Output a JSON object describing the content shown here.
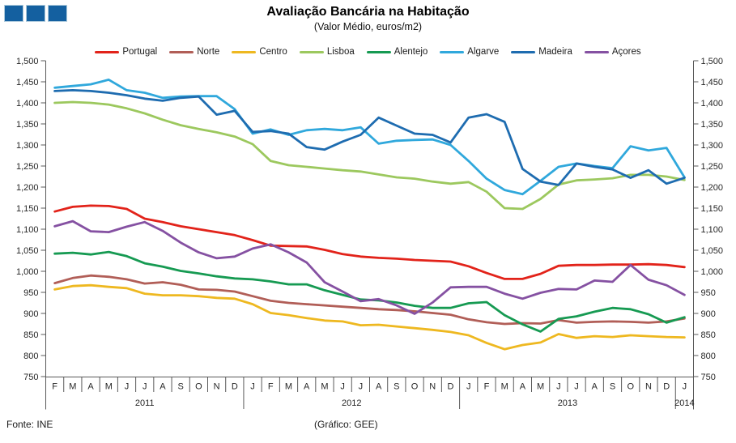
{
  "title": "Avaliação Bancária na Habitação",
  "subtitle": "(Valor Médio, euros/m2)",
  "footer": {
    "source": "Fonte: INE",
    "credit": "(Gráfico: GEE)"
  },
  "logo": {
    "square_color": "#1460A0",
    "square_count": 3
  },
  "chart_data": {
    "type": "line",
    "title": "Avaliação Bancária na Habitação",
    "subtitle": "(Valor Médio, euros/m2)",
    "grid": false,
    "legend_position": "top",
    "y_axis_sides": "both",
    "ylim": [
      750,
      1500
    ],
    "ytick_step": 50,
    "ytick_labels": [
      "1,500",
      "1,450",
      "1,400",
      "1,350",
      "1,300",
      "1,250",
      "1,200",
      "1,150",
      "1,100",
      "1,050",
      "1,000",
      "950",
      "900",
      "850",
      "800",
      "750"
    ],
    "x_months": [
      "F",
      "M",
      "A",
      "M",
      "J",
      "J",
      "A",
      "S",
      "O",
      "N",
      "D",
      "J",
      "F",
      "M",
      "A",
      "M",
      "J",
      "J",
      "A",
      "S",
      "O",
      "N",
      "D",
      "J",
      "F",
      "M",
      "A",
      "M",
      "J",
      "J",
      "A",
      "S",
      "O",
      "N",
      "D",
      "J"
    ],
    "x_years": [
      {
        "label": "2011",
        "span": 11
      },
      {
        "label": "2012",
        "span": 12
      },
      {
        "label": "2013",
        "span": 12
      },
      {
        "label": "2014",
        "span": 1
      }
    ],
    "series": [
      {
        "name": "Portugal",
        "color": "#E2231A",
        "values": [
          1142,
          1153,
          1156,
          1155,
          1148,
          1125,
          1117,
          1107,
          1100,
          1093,
          1086,
          1074,
          1061,
          1060,
          1059,
          1051,
          1041,
          1035,
          1032,
          1030,
          1027,
          1025,
          1023,
          1012,
          996,
          982,
          982,
          994,
          1013,
          1015,
          1015,
          1016,
          1016,
          1017,
          1015,
          1010
        ]
      },
      {
        "name": "Norte",
        "color": "#B15E57",
        "values": [
          972,
          984,
          990,
          987,
          981,
          971,
          974,
          968,
          957,
          956,
          952,
          941,
          930,
          925,
          922,
          919,
          916,
          913,
          910,
          908,
          905,
          901,
          897,
          886,
          879,
          875,
          877,
          876,
          884,
          878,
          880,
          881,
          880,
          878,
          881,
          888
        ]
      },
      {
        "name": "Centro",
        "color": "#EEB820",
        "values": [
          957,
          965,
          967,
          963,
          960,
          947,
          943,
          943,
          941,
          937,
          935,
          922,
          901,
          896,
          889,
          883,
          881,
          872,
          873,
          869,
          865,
          861,
          856,
          848,
          830,
          815,
          825,
          831,
          851,
          842,
          846,
          844,
          848,
          846,
          844,
          843
        ]
      },
      {
        "name": "Lisboa",
        "color": "#9CC85E",
        "values": [
          1400,
          1402,
          1400,
          1396,
          1387,
          1375,
          1360,
          1347,
          1338,
          1330,
          1320,
          1302,
          1262,
          1252,
          1248,
          1244,
          1240,
          1237,
          1230,
          1223,
          1220,
          1213,
          1208,
          1212,
          1189,
          1150,
          1148,
          1172,
          1206,
          1216,
          1218,
          1221,
          1229,
          1229,
          1225,
          1217
        ]
      },
      {
        "name": "Alentejo",
        "color": "#169A52",
        "values": [
          1042,
          1044,
          1040,
          1046,
          1036,
          1019,
          1011,
          1001,
          995,
          988,
          983,
          981,
          976,
          969,
          969,
          955,
          944,
          933,
          931,
          926,
          918,
          913,
          913,
          924,
          927,
          896,
          874,
          857,
          887,
          893,
          904,
          913,
          910,
          898,
          878,
          891
        ]
      },
      {
        "name": "Algarve",
        "color": "#30A8DC",
        "values": [
          1436,
          1440,
          1444,
          1455,
          1430,
          1424,
          1412,
          1415,
          1416,
          1416,
          1385,
          1327,
          1337,
          1324,
          1335,
          1338,
          1335,
          1342,
          1303,
          1310,
          1312,
          1313,
          1300,
          1262,
          1220,
          1193,
          1183,
          1215,
          1248,
          1256,
          1250,
          1245,
          1297,
          1287,
          1293,
          1223
        ]
      },
      {
        "name": "Madeira",
        "color": "#1E6CB0",
        "values": [
          1428,
          1430,
          1428,
          1424,
          1418,
          1410,
          1405,
          1412,
          1415,
          1372,
          1381,
          1331,
          1333,
          1327,
          1295,
          1289,
          1308,
          1324,
          1365,
          1346,
          1327,
          1324,
          1306,
          1365,
          1373,
          1355,
          1243,
          1213,
          1205,
          1256,
          1248,
          1242,
          1222,
          1240,
          1208,
          1222
        ]
      },
      {
        "name": "Açores",
        "color": "#8551A2",
        "values": [
          1107,
          1119,
          1095,
          1093,
          1106,
          1117,
          1096,
          1068,
          1045,
          1031,
          1035,
          1054,
          1064,
          1045,
          1021,
          974,
          952,
          929,
          934,
          919,
          899,
          926,
          962,
          963,
          963,
          947,
          935,
          949,
          958,
          957,
          978,
          975,
          1015,
          980,
          967,
          944
        ]
      }
    ]
  }
}
